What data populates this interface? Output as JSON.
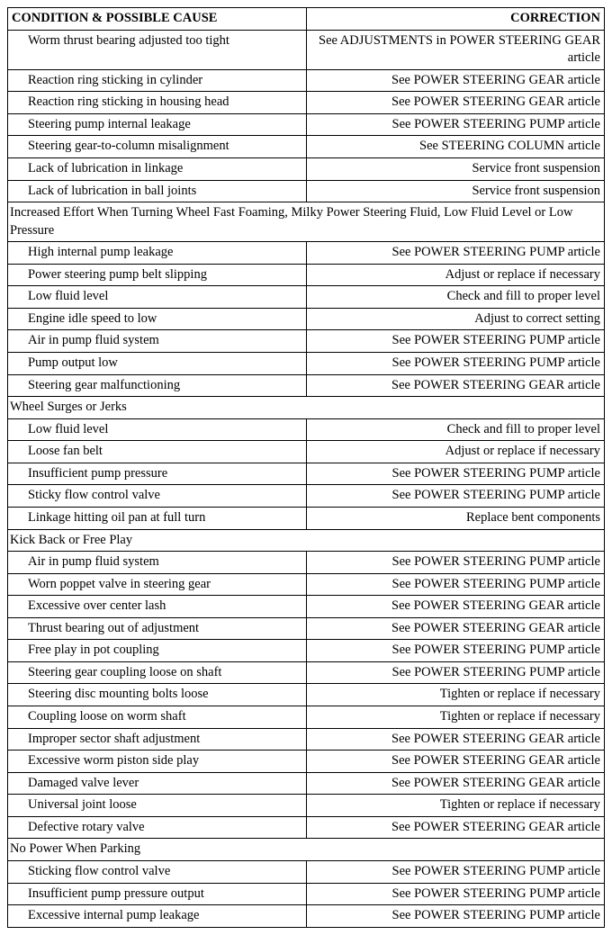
{
  "headers": {
    "left": "CONDITION & POSSIBLE CAUSE",
    "right": "CORRECTION"
  },
  "rows": [
    {
      "type": "pair",
      "cause": "Worm thrust bearing adjusted too tight",
      "correction": "See ADJUSTMENTS in POWER STEERING GEAR article"
    },
    {
      "type": "pair",
      "cause": "Reaction ring sticking in cylinder",
      "correction": "See POWER STEERING GEAR article"
    },
    {
      "type": "pair",
      "cause": "Reaction ring sticking in housing head",
      "correction": "See POWER STEERING GEAR article"
    },
    {
      "type": "pair",
      "cause": "Steering pump internal leakage",
      "correction": "See POWER STEERING PUMP article"
    },
    {
      "type": "pair",
      "cause": "Steering gear-to-column misalignment",
      "correction": "See STEERING COLUMN article"
    },
    {
      "type": "pair",
      "cause": "Lack of lubrication in linkage",
      "correction": "Service front suspension"
    },
    {
      "type": "pair",
      "cause": "Lack of lubrication in ball joints",
      "correction": "Service front suspension"
    },
    {
      "type": "section",
      "text": "Increased Effort When Turning Wheel Fast Foaming, Milky Power Steering Fluid, Low Fluid Level or Low Pressure"
    },
    {
      "type": "pair",
      "cause": "High internal pump leakage",
      "correction": "See POWER STEERING PUMP article"
    },
    {
      "type": "pair",
      "cause": "Power steering pump belt slipping",
      "correction": "Adjust or replace if necessary"
    },
    {
      "type": "pair",
      "cause": "Low fluid level",
      "correction": "Check and fill to proper level"
    },
    {
      "type": "pair",
      "cause": "Engine idle speed to low",
      "correction": "Adjust to correct setting"
    },
    {
      "type": "pair",
      "cause": "Air in pump fluid system",
      "correction": "See POWER STEERING PUMP article"
    },
    {
      "type": "pair",
      "cause": "Pump output low",
      "correction": "See POWER STEERING PUMP article"
    },
    {
      "type": "pair",
      "cause": "Steering gear malfunctioning",
      "correction": "See POWER STEERING GEAR article"
    },
    {
      "type": "section",
      "text": "Wheel Surges or Jerks"
    },
    {
      "type": "pair",
      "cause": "Low fluid level",
      "correction": "Check and fill to proper level"
    },
    {
      "type": "pair",
      "cause": "Loose fan belt",
      "correction": "Adjust or replace if necessary"
    },
    {
      "type": "pair",
      "cause": "Insufficient pump pressure",
      "correction": "See POWER STEERING PUMP article"
    },
    {
      "type": "pair",
      "cause": "Sticky flow control valve",
      "correction": "See POWER STEERING PUMP article"
    },
    {
      "type": "pair",
      "cause": "Linkage hitting oil pan at full turn",
      "correction": "Replace bent components"
    },
    {
      "type": "section",
      "text": "Kick Back or Free Play"
    },
    {
      "type": "pair",
      "cause": "Air in pump fluid system",
      "correction": "See POWER STEERING PUMP article"
    },
    {
      "type": "pair",
      "cause": "Worn poppet valve in steering gear",
      "correction": "See POWER STEERING PUMP article"
    },
    {
      "type": "pair",
      "cause": "Excessive over center lash",
      "correction": "See POWER STEERING GEAR article"
    },
    {
      "type": "pair",
      "cause": "Thrust bearing out of adjustment",
      "correction": "See POWER STEERING GEAR article"
    },
    {
      "type": "pair",
      "cause": "Free play in pot coupling",
      "correction": "See POWER STEERING PUMP article"
    },
    {
      "type": "pair",
      "cause": "Steering gear coupling loose on shaft",
      "correction": "See POWER STEERING PUMP article"
    },
    {
      "type": "pair",
      "cause": "Steering disc mounting bolts loose",
      "correction": "Tighten or replace if necessary"
    },
    {
      "type": "pair",
      "cause": "Coupling loose on worm shaft",
      "correction": "Tighten or replace if necessary"
    },
    {
      "type": "pair",
      "cause": "Improper sector shaft adjustment",
      "correction": "See POWER STEERING GEAR article"
    },
    {
      "type": "pair",
      "cause": "Excessive worm piston side play",
      "correction": "See POWER STEERING GEAR article"
    },
    {
      "type": "pair",
      "cause": "Damaged valve lever",
      "correction": "See POWER STEERING GEAR article"
    },
    {
      "type": "pair",
      "cause": "Universal joint loose",
      "correction": "Tighten or replace if necessary"
    },
    {
      "type": "pair",
      "cause": "Defective rotary valve",
      "correction": "See POWER STEERING GEAR article"
    },
    {
      "type": "section",
      "text": "No Power When Parking"
    },
    {
      "type": "pair",
      "cause": "Sticking flow control valve",
      "correction": "See POWER STEERING PUMP article"
    },
    {
      "type": "pair",
      "cause": "Insufficient pump pressure output",
      "correction": "See POWER STEERING PUMP article"
    },
    {
      "type": "pair",
      "cause": "Excessive internal pump leakage",
      "correction": "See POWER STEERING PUMP article"
    }
  ]
}
